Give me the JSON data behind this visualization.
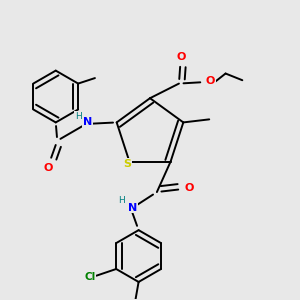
{
  "background_color": "#e8e8e8",
  "fig_size": [
    3.0,
    3.0
  ],
  "dpi": 100,
  "colors": {
    "S": "#cccc00",
    "N": "#0000ff",
    "O": "#ff0000",
    "Cl": "#008000",
    "H": "#008080",
    "bond": "#000000",
    "bg": "#e8e8e8"
  },
  "lw": 1.4,
  "dbo": 0.018
}
